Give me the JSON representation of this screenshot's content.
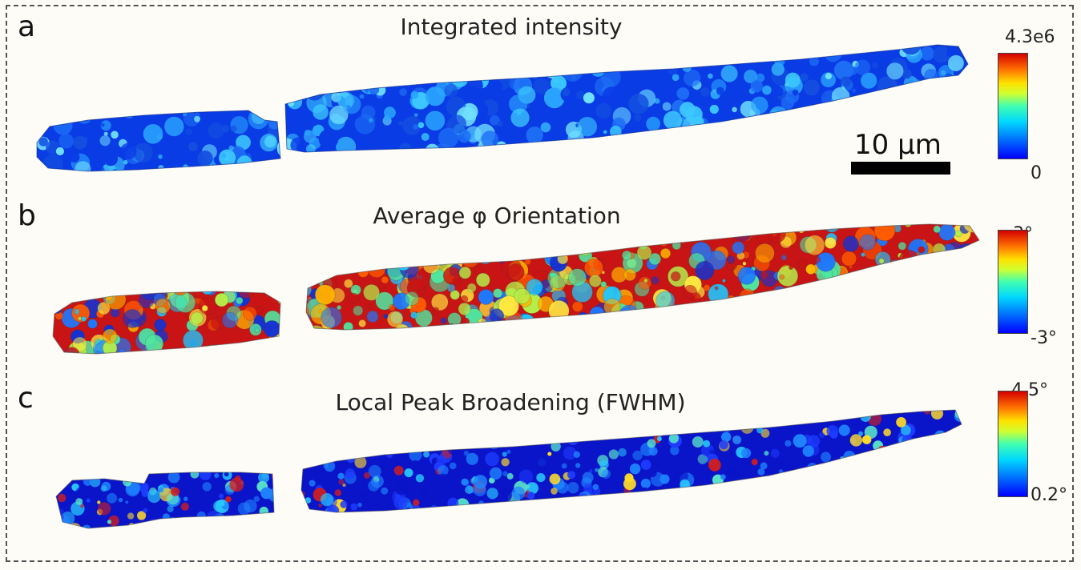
{
  "panels": [
    {
      "letter": "a",
      "title": "Integrated intensity",
      "colorbar": {
        "max": "4.3e6",
        "min": "0"
      },
      "palette": [
        "#0a3ce6",
        "#1e6ef5",
        "#2aa6ff",
        "#3cc8ff",
        "#6fe0ff",
        "#1450e0"
      ]
    },
    {
      "letter": "b",
      "title": "Average φ Orientation",
      "colorbar": {
        "max": "3°",
        "min": "-3°"
      },
      "palette": [
        "#c81414",
        "#ff5a00",
        "#ffb400",
        "#ffe840",
        "#b4f04a",
        "#50e6a0",
        "#1ec8ff",
        "#1e78ff",
        "#1432d2"
      ]
    },
    {
      "letter": "c",
      "title": "Local Peak Broadening (FWHM)",
      "colorbar": {
        "max": "4.5°",
        "min": "0.2°"
      },
      "palette": [
        "#0a14c8",
        "#1e3cff",
        "#1e82ff",
        "#28c8ff",
        "#5ae6c8",
        "#ffdc28",
        "#d21e1e"
      ]
    }
  ],
  "scale_bar": {
    "label": "10 μm"
  }
}
